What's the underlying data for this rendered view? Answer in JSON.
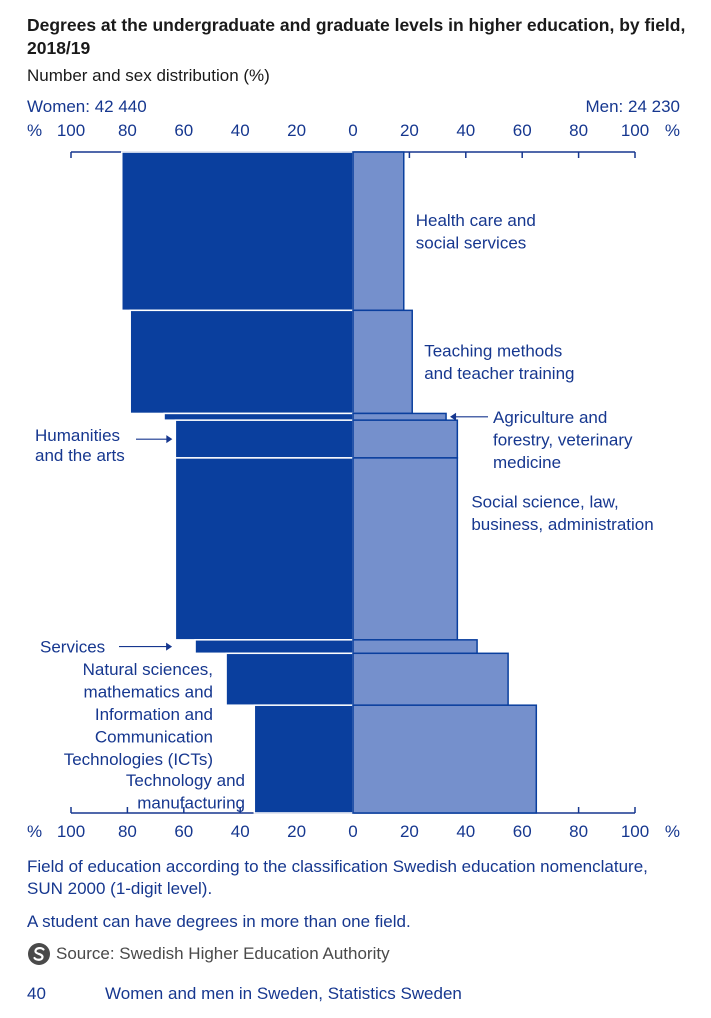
{
  "title": "Degrees at the undergraduate and graduate levels in higher education, by field, 2018/19",
  "subtitle": "Number and sex distribution (%)",
  "colors": {
    "women": "#0a3f9e",
    "men": "#7590cc",
    "text": "#16378f",
    "axis": "#16378f"
  },
  "chart_data": {
    "type": "bar",
    "orientation": "horizontal-population-pyramid",
    "women_label": "Women: 42 440",
    "men_label": "Men: 24 230",
    "axis_unit": "%",
    "ticks": [
      "100",
      "80",
      "60",
      "40",
      "20",
      "0",
      "20",
      "40",
      "60",
      "80",
      "100"
    ],
    "tick_values": [
      -100,
      -80,
      -60,
      -40,
      -20,
      0,
      20,
      40,
      60,
      80,
      100
    ],
    "xlim": [
      -100,
      100
    ],
    "bar_width_meaning": "number of degrees",
    "series": [
      {
        "name": "Women",
        "side": "left"
      },
      {
        "name": "Men",
        "side": "right"
      }
    ],
    "categories": [
      {
        "label": "Health care and\nsocial services",
        "women": 82,
        "men": 18,
        "share": 23.5
      },
      {
        "label": "Teaching methods\nand teacher training",
        "women": 79,
        "men": 21,
        "share": 15.3
      },
      {
        "label": "Agriculture and\nforestry, veterinary\nmedicine",
        "women": 67,
        "men": 33,
        "share": 1.0
      },
      {
        "label": "Humanities\nand the arts",
        "women": 63,
        "men": 37,
        "share": 5.6
      },
      {
        "label": "Social science, law,\nbusiness, administration",
        "women": 63,
        "men": 37,
        "share": 27.0
      },
      {
        "label": "Services",
        "women": 56,
        "men": 44,
        "share": 2.0
      },
      {
        "label": "Natural sciences,\nmathematics and\nInformation and\nCommunication\nTechnologies (ICTs)",
        "women": 45,
        "men": 55,
        "share": 7.7
      },
      {
        "label": "Technology and\nmanufacturing",
        "women": 35,
        "men": 65,
        "share": 16.0
      }
    ]
  },
  "footnotes": [
    "Field of education according to the classification Swedish education nomenclature, SUN 2000 (1-digit level).",
    "A student can have degrees in more than one field."
  ],
  "source": "Source: Swedish Higher Education Authority",
  "page_number": "40",
  "publication": "Women and men in Sweden, Statistics Sweden"
}
